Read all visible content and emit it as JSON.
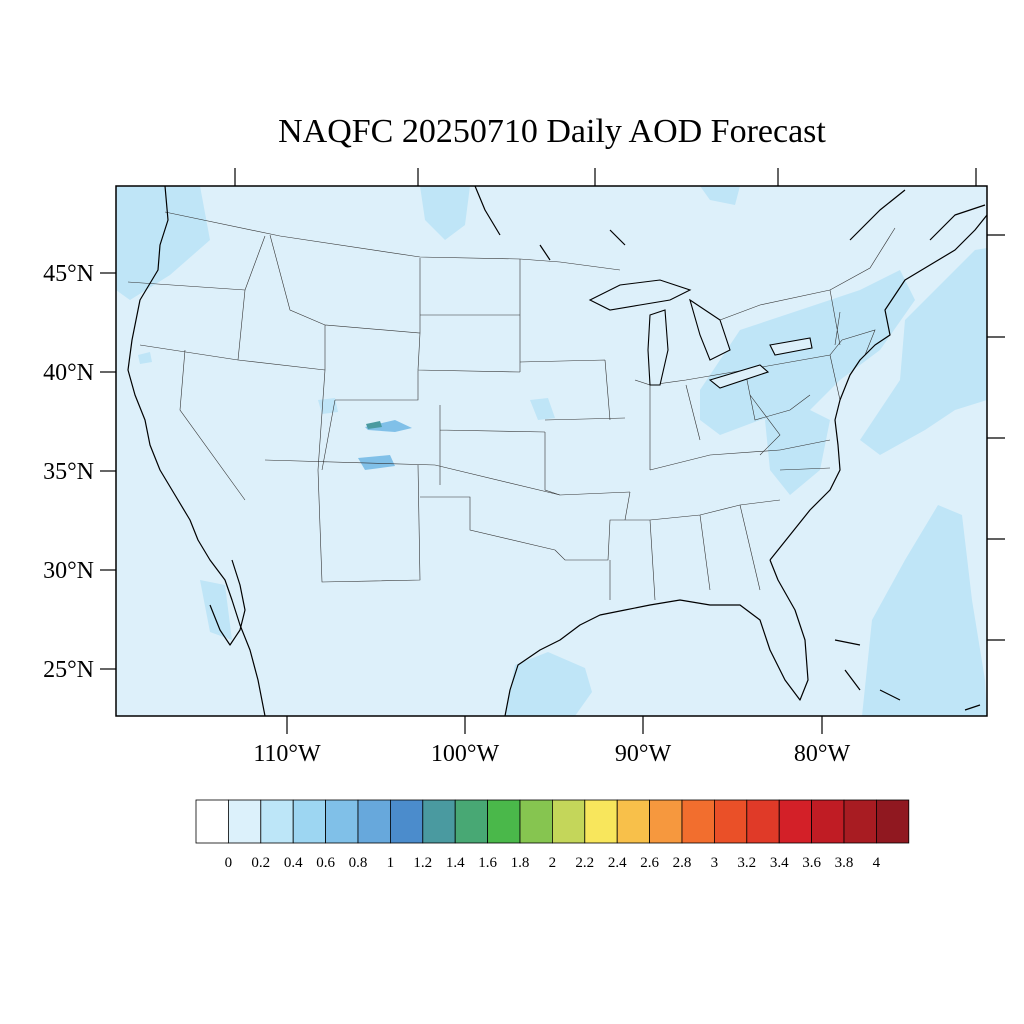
{
  "title": "NAQFC 20250710 Daily AOD Forecast",
  "lat_ticks": [
    {
      "lat": 45,
      "label": "45°N"
    },
    {
      "lat": 40,
      "label": "40°N"
    },
    {
      "lat": 35,
      "label": "35°N"
    },
    {
      "lat": 30,
      "label": "30°N"
    },
    {
      "lat": 25,
      "label": "25°N"
    }
  ],
  "lon_ticks": [
    {
      "lon": -110,
      "label": "110°W"
    },
    {
      "lon": -100,
      "label": "100°W"
    },
    {
      "lon": -90,
      "label": "90°W"
    },
    {
      "lon": -80,
      "label": "80°W"
    }
  ],
  "colorbar": {
    "labels": [
      "0",
      "0.2",
      "0.4",
      "0.6",
      "0.8",
      "1",
      "1.2",
      "1.4",
      "1.6",
      "1.8",
      "2",
      "2.2",
      "2.4",
      "2.6",
      "2.8",
      "3",
      "3.2",
      "3.4",
      "3.6",
      "3.8",
      "4"
    ],
    "colors": [
      "#ffffff",
      "#dcf1fb",
      "#bde6f8",
      "#9dd6f2",
      "#80c0e8",
      "#67a8dc",
      "#4b8ccc",
      "#4a9aa0",
      "#48a874",
      "#4ab84a",
      "#86c550",
      "#c4d65a",
      "#f8e65c",
      "#f8c04a",
      "#f6983e",
      "#f26e2e",
      "#ea5028",
      "#e03a28",
      "#d32028",
      "#c01c24",
      "#a81c22",
      "#901820"
    ]
  },
  "field": {
    "background_color": "#ddf0fa",
    "enhanced_color": "#bfe5f7",
    "peak_color_high": "#4a9aa0",
    "peak_color_mid": "#80c0e8"
  }
}
